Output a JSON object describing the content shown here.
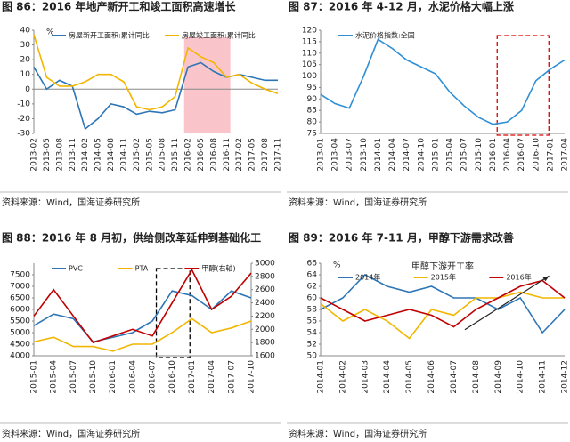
{
  "chart_data": [
    {
      "type": "line",
      "title": "图 86：2016 年地产新开工和竣工面积高速增长",
      "source": "资料来源：Wind，国海证券研究所",
      "unit": "%",
      "categories": [
        "2013-02",
        "2013-05",
        "2013-08",
        "2013-11",
        "2014-02",
        "2014-05",
        "2014-08",
        "2014-11",
        "2015-02",
        "2015-05",
        "2015-08",
        "2015-11",
        "2016-02",
        "2016-05",
        "2016-08",
        "2016-11",
        "2017-02",
        "2017-05",
        "2017-08",
        "2017-11"
      ],
      "series": [
        {
          "name": "房屋新开工面积:累计同比",
          "color": "#2e75b6",
          "values": [
            15,
            0,
            6,
            2,
            -27,
            -20,
            -10,
            -12,
            -17,
            -15,
            -16,
            -14,
            15,
            18,
            12,
            8,
            10,
            8,
            6,
            6
          ]
        },
        {
          "name": "房屋竣工面积:累计同比",
          "color": "#f2b600",
          "values": [
            37,
            8,
            2,
            2,
            5,
            10,
            10,
            5,
            -12,
            -14,
            -12,
            -5,
            28,
            22,
            18,
            8,
            10,
            4,
            0,
            -3
          ]
        }
      ],
      "ylim": [
        -30,
        40
      ],
      "yticks": [
        -30,
        -20,
        -10,
        0,
        10,
        20,
        30,
        40
      ]
    },
    {
      "type": "line",
      "title": "图 87：2016 年 4-12 月，水泥价格大幅上涨",
      "source": "资料来源：Wind，国海证券研究所",
      "categories": [
        "2013-01",
        "2013-04",
        "2013-07",
        "2013-10",
        "2014-01",
        "2014-04",
        "2014-07",
        "2014-10",
        "2015-01",
        "2015-04",
        "2015-07",
        "2015-10",
        "2016-01",
        "2016-04",
        "2016-07",
        "2016-10",
        "2017-01",
        "2017-04"
      ],
      "series": [
        {
          "name": "水泥价格指数:全国",
          "color": "#2e8fd6",
          "values": [
            92,
            88,
            86,
            100,
            116,
            112,
            107,
            104,
            101,
            93,
            87,
            82,
            79,
            80,
            85,
            98,
            103,
            107
          ]
        }
      ],
      "ylim": [
        75,
        120
      ],
      "yticks": [
        75,
        80,
        85,
        90,
        95,
        100,
        105,
        110,
        115,
        120
      ]
    },
    {
      "type": "line",
      "title": "图 88：2016 年 8 月初，供给侧改革延伸到基础化工",
      "source": "资料来源：Wind，国海证券研究所",
      "categories": [
        "2015-01",
        "2015-04",
        "2015-07",
        "2015-10",
        "2016-01",
        "2016-04",
        "2016-07",
        "2016-10",
        "2017-01",
        "2017-04",
        "2017-07",
        "2017-10"
      ],
      "series": [
        {
          "name": "PVC",
          "color": "#2e75b6",
          "values": [
            5300,
            5800,
            5600,
            4600,
            4800,
            5000,
            5500,
            6800,
            6600,
            6000,
            6800,
            6500
          ]
        },
        {
          "name": "PTA",
          "color": "#f2b600",
          "values": [
            4600,
            4800,
            4400,
            4400,
            4200,
            4500,
            4500,
            5000,
            5600,
            5000,
            5200,
            5500
          ]
        },
        {
          "name": "甲醇(右轴)",
          "color": "#c00000",
          "axis": "y2",
          "values": [
            2200,
            2600,
            2200,
            1800,
            1900,
            2000,
            1900,
            2400,
            2900,
            2300,
            2500,
            2850
          ]
        }
      ],
      "ylim": [
        4000,
        8000
      ],
      "yticks": [
        4000,
        4500,
        5000,
        5500,
        6000,
        6500,
        7000,
        7500
      ],
      "y2lim": [
        1600,
        3000
      ],
      "y2ticks": [
        1600,
        1800,
        2000,
        2200,
        2400,
        2600,
        2800,
        3000
      ]
    },
    {
      "type": "line",
      "title": "图 89：2016 年 7-11 月，甲醇下游需求改善",
      "source": "资料来源：Wind，国海证券研究所",
      "unit": "%",
      "subtitle": "甲醇下游开工率",
      "categories": [
        "2014-01",
        "2014-02",
        "2014-03",
        "2014-04",
        "2014-05",
        "2014-06",
        "2014-07",
        "2014-08",
        "2014-09",
        "2014-10",
        "2014-11",
        "2014-12"
      ],
      "series": [
        {
          "name": "2014年",
          "color": "#2e75b6",
          "values": [
            58,
            60,
            64,
            62,
            61,
            62,
            60,
            60,
            58,
            60,
            54,
            58
          ]
        },
        {
          "name": "2015年",
          "color": "#f2b600",
          "values": [
            59,
            56,
            58,
            56,
            53,
            58,
            57,
            60,
            60,
            61,
            60,
            60
          ]
        },
        {
          "name": "2016年",
          "color": "#c00000",
          "values": [
            60,
            58,
            56,
            57,
            58,
            57,
            55,
            58,
            60,
            62,
            63,
            60
          ]
        }
      ],
      "ylim": [
        50,
        66
      ],
      "yticks": [
        50,
        52,
        54,
        56,
        58,
        60,
        62,
        64,
        66
      ]
    }
  ]
}
